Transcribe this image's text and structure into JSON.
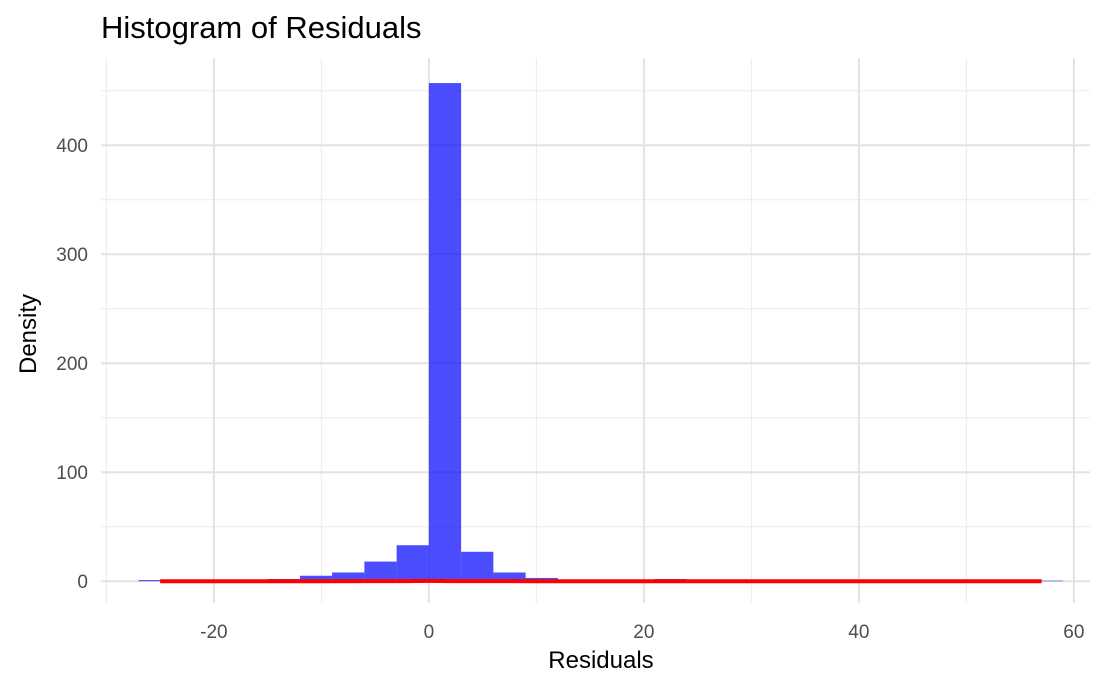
{
  "chart_data": {
    "type": "bar",
    "title": "Histogram of Residuals",
    "xlabel": "Residuals",
    "ylabel": "Density",
    "xlim": [
      -30.5,
      61.5
    ],
    "ylim": [
      -20,
      480
    ],
    "x_ticks": [
      -20,
      0,
      20,
      40,
      60
    ],
    "y_ticks": [
      0,
      100,
      200,
      300,
      400
    ],
    "grid": true,
    "bin_width": 3,
    "bins": [
      {
        "x0": -27,
        "x1": -24,
        "value": 1
      },
      {
        "x0": -24,
        "x1": -21,
        "value": 0.5
      },
      {
        "x0": -21,
        "x1": -18,
        "value": 0.5
      },
      {
        "x0": -18,
        "x1": -15,
        "value": 1
      },
      {
        "x0": -15,
        "x1": -12,
        "value": 2
      },
      {
        "x0": -12,
        "x1": -9,
        "value": 5
      },
      {
        "x0": -9,
        "x1": -6,
        "value": 8
      },
      {
        "x0": -6,
        "x1": -3,
        "value": 18
      },
      {
        "x0": -3,
        "x1": 0,
        "value": 33
      },
      {
        "x0": 0,
        "x1": 3,
        "value": 457
      },
      {
        "x0": 3,
        "x1": 6,
        "value": 27
      },
      {
        "x0": 6,
        "x1": 9,
        "value": 8
      },
      {
        "x0": 9,
        "x1": 12,
        "value": 3
      },
      {
        "x0": 12,
        "x1": 15,
        "value": 1
      },
      {
        "x0": 15,
        "x1": 18,
        "value": 1
      },
      {
        "x0": 18,
        "x1": 21,
        "value": 1
      },
      {
        "x0": 21,
        "x1": 24,
        "value": 2
      },
      {
        "x0": 24,
        "x1": 27,
        "value": 1
      },
      {
        "x0": 27,
        "x1": 30,
        "value": 1
      },
      {
        "x0": 30,
        "x1": 33,
        "value": 1
      },
      {
        "x0": 33,
        "x1": 36,
        "value": 1
      },
      {
        "x0": 36,
        "x1": 39,
        "value": 1
      },
      {
        "x0": 39,
        "x1": 42,
        "value": 1
      },
      {
        "x0": 42,
        "x1": 45,
        "value": 1
      },
      {
        "x0": 45,
        "x1": 48,
        "value": 1
      },
      {
        "x0": 48,
        "x1": 51,
        "value": 1
      },
      {
        "x0": 51,
        "x1": 54,
        "value": 1
      },
      {
        "x0": 54,
        "x1": 57,
        "value": 1
      },
      {
        "x0": 57,
        "x1": 59,
        "value": 0.5
      }
    ],
    "bar_color": "#0000FF",
    "bar_opacity": 0.7,
    "density_line": {
      "color": "#FF0000",
      "x": [
        -25,
        -15,
        -10,
        -5,
        -2,
        0,
        2,
        5,
        10,
        20,
        30,
        40,
        50,
        57
      ],
      "y": [
        0,
        0,
        0.01,
        0.03,
        0.08,
        0.25,
        0.08,
        0.03,
        0.01,
        0,
        0,
        0,
        0,
        0
      ]
    }
  }
}
